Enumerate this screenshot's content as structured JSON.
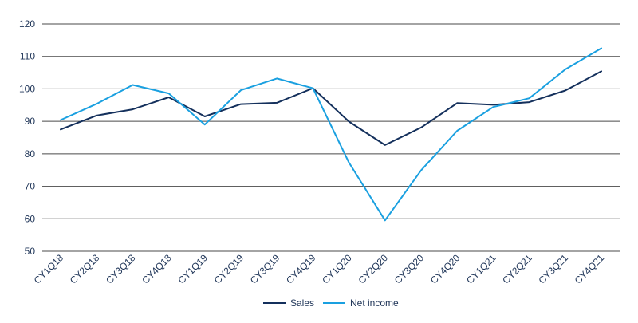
{
  "chart_data": {
    "type": "line",
    "title": "",
    "xlabel": "",
    "ylabel": "",
    "ylim": [
      50,
      120
    ],
    "yticks": [
      50,
      60,
      70,
      80,
      90,
      100,
      110,
      120
    ],
    "grid": true,
    "legend_position": "bottom-center",
    "categories": [
      "CY1Q18",
      "CY2Q18",
      "CY3Q18",
      "CY4Q18",
      "CY1Q19",
      "CY2Q19",
      "CY3Q19",
      "CY4Q19",
      "CY1Q20",
      "CY2Q20",
      "CY3Q20",
      "CY4Q20",
      "CY1Q21",
      "CY2Q21",
      "CY3Q21",
      "CY4Q21"
    ],
    "series": [
      {
        "name": "Sales",
        "color": "#14305c",
        "values": [
          87.5,
          91.8,
          93.7,
          97.4,
          91.5,
          95.3,
          95.7,
          100.2,
          89.9,
          82.7,
          88.1,
          95.6,
          95.1,
          95.9,
          99.5,
          105.4
        ]
      },
      {
        "name": "Net income",
        "color": "#1aa0e0",
        "values": [
          90.4,
          95.4,
          101.2,
          98.6,
          89.0,
          99.6,
          103.2,
          100.2,
          77.3,
          59.5,
          74.9,
          87.1,
          94.4,
          97.1,
          106.0,
          112.5
        ]
      }
    ]
  }
}
